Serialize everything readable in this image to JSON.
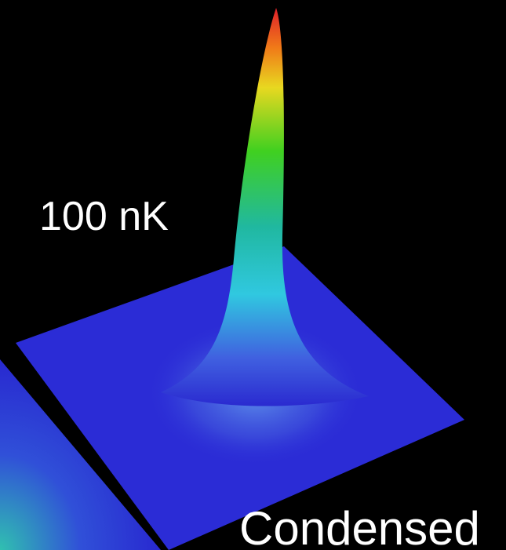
{
  "labels": {
    "temperature": "100 nK",
    "state": "Condensed"
  }
}
